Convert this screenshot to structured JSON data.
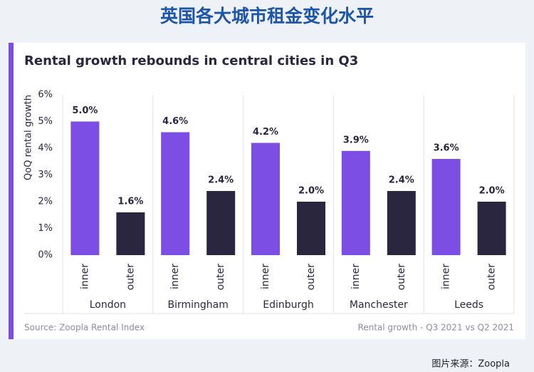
{
  "page_title": "英国各大城市租金变化水平",
  "image_credit": "图片来源：Zoopla",
  "chart_data": {
    "type": "bar",
    "title": "Rental growth rebounds in central cities in Q3",
    "y_label": "QoQ rental growth",
    "source": "Source: Zoopla Rental Index",
    "note": "Rental growth - Q3 2021 vs Q2 2021",
    "categories": [
      "London",
      "Birmingham",
      "Edinburgh",
      "Manchester",
      "Leeds"
    ],
    "series": [
      {
        "name": "inner",
        "color": "#7c4ee4",
        "values": [
          5.0,
          4.6,
          4.2,
          3.9,
          3.6
        ],
        "value_labels": [
          "5.0%",
          "4.6%",
          "4.2%",
          "3.9%",
          "3.6%"
        ]
      },
      {
        "name": "outer",
        "color": "#2b2640",
        "values": [
          1.6,
          2.4,
          2.0,
          2.4,
          2.0
        ],
        "value_labels": [
          "1.6%",
          "2.4%",
          "2.0%",
          "2.4%",
          "2.0%"
        ]
      }
    ],
    "ylim": [
      0,
      6
    ],
    "yticks": [
      {
        "value": 0,
        "label": "0%"
      },
      {
        "value": 1,
        "label": "1%"
      },
      {
        "value": 2,
        "label": "2%"
      },
      {
        "value": 3,
        "label": "3%"
      },
      {
        "value": 4,
        "label": "4%"
      },
      {
        "value": 5,
        "label": "5%"
      },
      {
        "value": 6,
        "label": "6%"
      }
    ]
  }
}
